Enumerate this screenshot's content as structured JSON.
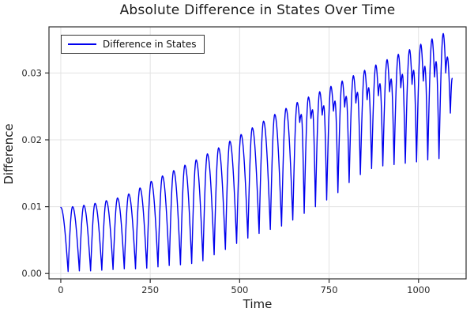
{
  "chart_data": {
    "type": "line",
    "title": "Absolute Difference in States Over Time",
    "xlabel": "Time",
    "ylabel": "Difference",
    "xlim": [
      -33,
      1133
    ],
    "ylim": [
      -0.0008,
      0.0369
    ],
    "grid": true,
    "legend_position": "top-left",
    "xticks": {
      "values": [
        0,
        250,
        500,
        750,
        1000
      ],
      "labels": [
        "0",
        "250",
        "500",
        "750",
        "1000"
      ]
    },
    "yticks": {
      "values": [
        0.0,
        0.01,
        0.02,
        0.03
      ],
      "labels": [
        "0.00",
        "0.01",
        "0.02",
        "0.03"
      ]
    },
    "colors": {
      "line": "#0000EE",
      "frame": "#2E2E2E",
      "grid": "#E3E3E3",
      "tick_label": "#2B2B2B",
      "background": "#FFFFFF"
    },
    "sampling": "local extrema (t, value) of the oscillating curve; segments between extrema are quarter-sine lobes (rounded maxima, cusped minima)",
    "series": [
      {
        "name": "Difference in States",
        "color": "#0000EE",
        "extrema": [
          [
            0,
            0.0099
          ],
          [
            20.5,
            0.0003
          ],
          [
            32.9,
            0.01
          ],
          [
            51.9,
            0.0004
          ],
          [
            64.3,
            0.0102
          ],
          [
            83.3,
            0.0004
          ],
          [
            95.7,
            0.0105
          ],
          [
            114.7,
            0.0005
          ],
          [
            127.1,
            0.0109
          ],
          [
            146.1,
            0.0006
          ],
          [
            158.5,
            0.0113
          ],
          [
            177.5,
            0.0007
          ],
          [
            189.9,
            0.0119
          ],
          [
            208.9,
            0.0007
          ],
          [
            221.3,
            0.0128
          ],
          [
            240.3,
            0.0008
          ],
          [
            252.7,
            0.0138
          ],
          [
            271.7,
            0.001
          ],
          [
            284.1,
            0.0146
          ],
          [
            303.1,
            0.0012
          ],
          [
            315.5,
            0.0154
          ],
          [
            334.5,
            0.0013
          ],
          [
            346.9,
            0.0162
          ],
          [
            365.9,
            0.0015
          ],
          [
            378.3,
            0.017
          ],
          [
            397.3,
            0.0019
          ],
          [
            409.7,
            0.0179
          ],
          [
            428.7,
            0.0028
          ],
          [
            441.1,
            0.0188
          ],
          [
            460.1,
            0.0036
          ],
          [
            472.5,
            0.0198
          ],
          [
            491.5,
            0.0045
          ],
          [
            503.9,
            0.0208
          ],
          [
            522.9,
            0.0053
          ],
          [
            535.3,
            0.0218
          ],
          [
            554.3,
            0.006
          ],
          [
            566.7,
            0.0228
          ],
          [
            585.7,
            0.0066
          ],
          [
            598.1,
            0.0238
          ],
          [
            617.1,
            0.0071
          ],
          [
            629.5,
            0.0247
          ],
          [
            648.5,
            0.008
          ],
          [
            660.9,
            0.0256
          ],
          [
            667.9,
            0.0226
          ],
          [
            672.4,
            0.0238
          ],
          [
            680.4,
            0.009
          ],
          [
            692.3,
            0.0264
          ],
          [
            699.3,
            0.0232
          ],
          [
            703.8,
            0.0245
          ],
          [
            711.8,
            0.01
          ],
          [
            723.7,
            0.0272
          ],
          [
            730.7,
            0.0237
          ],
          [
            735.2,
            0.0251
          ],
          [
            743.2,
            0.011
          ],
          [
            755.1,
            0.028
          ],
          [
            762.1,
            0.0243
          ],
          [
            766.6,
            0.0258
          ],
          [
            774.6,
            0.0121
          ],
          [
            786.5,
            0.0288
          ],
          [
            793.5,
            0.0249
          ],
          [
            798.0,
            0.0265
          ],
          [
            806.0,
            0.0136
          ],
          [
            817.9,
            0.0296
          ],
          [
            824.9,
            0.0255
          ],
          [
            829.4,
            0.0271
          ],
          [
            837.4,
            0.0148
          ],
          [
            849.3,
            0.0304
          ],
          [
            856.3,
            0.026
          ],
          [
            860.8,
            0.0278
          ],
          [
            868.8,
            0.0157
          ],
          [
            880.7,
            0.0312
          ],
          [
            887.7,
            0.0266
          ],
          [
            892.2,
            0.0284
          ],
          [
            900.2,
            0.0161
          ],
          [
            912.1,
            0.032
          ],
          [
            919.1,
            0.0272
          ],
          [
            923.6,
            0.0291
          ],
          [
            931.6,
            0.0163
          ],
          [
            943.5,
            0.0328
          ],
          [
            950.5,
            0.0278
          ],
          [
            955.0,
            0.0298
          ],
          [
            963.0,
            0.0165
          ],
          [
            974.9,
            0.0335
          ],
          [
            981.9,
            0.0283
          ],
          [
            986.4,
            0.0304
          ],
          [
            994.4,
            0.0167
          ],
          [
            1006.3,
            0.0343
          ],
          [
            1013.3,
            0.0288
          ],
          [
            1017.8,
            0.031
          ],
          [
            1025.8,
            0.017
          ],
          [
            1037.7,
            0.0351
          ],
          [
            1044.7,
            0.0294
          ],
          [
            1049.2,
            0.0317
          ],
          [
            1057.2,
            0.0172
          ],
          [
            1069.1,
            0.0359
          ],
          [
            1076.1,
            0.03
          ],
          [
            1080.6,
            0.0324
          ],
          [
            1089.0,
            0.024
          ],
          [
            1094.0,
            0.0292
          ]
        ]
      }
    ]
  }
}
